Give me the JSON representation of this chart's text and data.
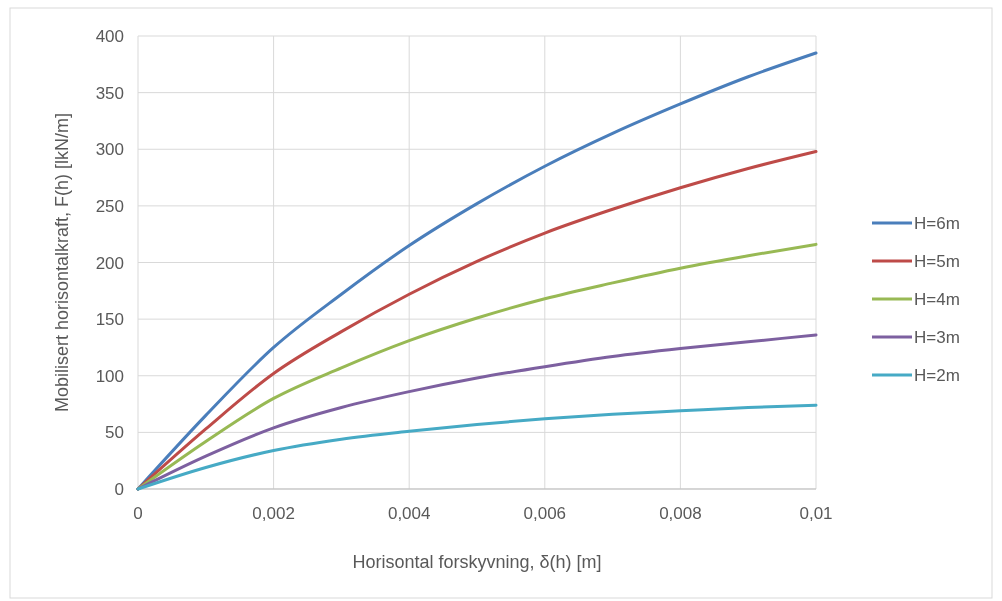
{
  "chart_data": {
    "type": "line",
    "xlabel": "Horisontal forskyvning, δ(h) [m]",
    "ylabel": "Mobilisert horisontalkraft, F(h) [lkN/m]",
    "x": [
      0,
      0.001,
      0.002,
      0.003,
      0.004,
      0.005,
      0.006,
      0.007,
      0.008,
      0.009,
      0.01
    ],
    "series": [
      {
        "name": "H=6m",
        "color": "#4a7ebb",
        "values": [
          0,
          65,
          125,
          172,
          215,
          252,
          285,
          314,
          340,
          364,
          385
        ]
      },
      {
        "name": "H=5m",
        "color": "#be4b48",
        "values": [
          0,
          53,
          102,
          139,
          172,
          201,
          226,
          247,
          266,
          283,
          298
        ]
      },
      {
        "name": "H=4m",
        "color": "#98b954",
        "values": [
          0,
          42,
          80,
          107,
          131,
          151,
          168,
          182,
          195,
          206,
          216
        ]
      },
      {
        "name": "H=3m",
        "color": "#7d60a0",
        "values": [
          0,
          29,
          54,
          72,
          86,
          98,
          108,
          117,
          124,
          130,
          136
        ]
      },
      {
        "name": "H=2m",
        "color": "#46aac5",
        "values": [
          0,
          19,
          34,
          44,
          51,
          57,
          62,
          66,
          69,
          72,
          74
        ]
      }
    ],
    "xlim": [
      0,
      0.01
    ],
    "xticks": [
      0,
      {
        "value": 0.002,
        "label": "0,002"
      },
      {
        "value": 0.004,
        "label": "0,004"
      },
      {
        "value": 0.006,
        "label": "0,006"
      },
      {
        "value": 0.008,
        "label": "0,008"
      },
      {
        "value": 0.01,
        "label": "0,01"
      }
    ],
    "ylim": [
      0,
      400
    ],
    "yticks": [
      0,
      50,
      100,
      150,
      200,
      250,
      300,
      350,
      400
    ],
    "grid": true,
    "legend": "right",
    "line_style": "solid"
  }
}
